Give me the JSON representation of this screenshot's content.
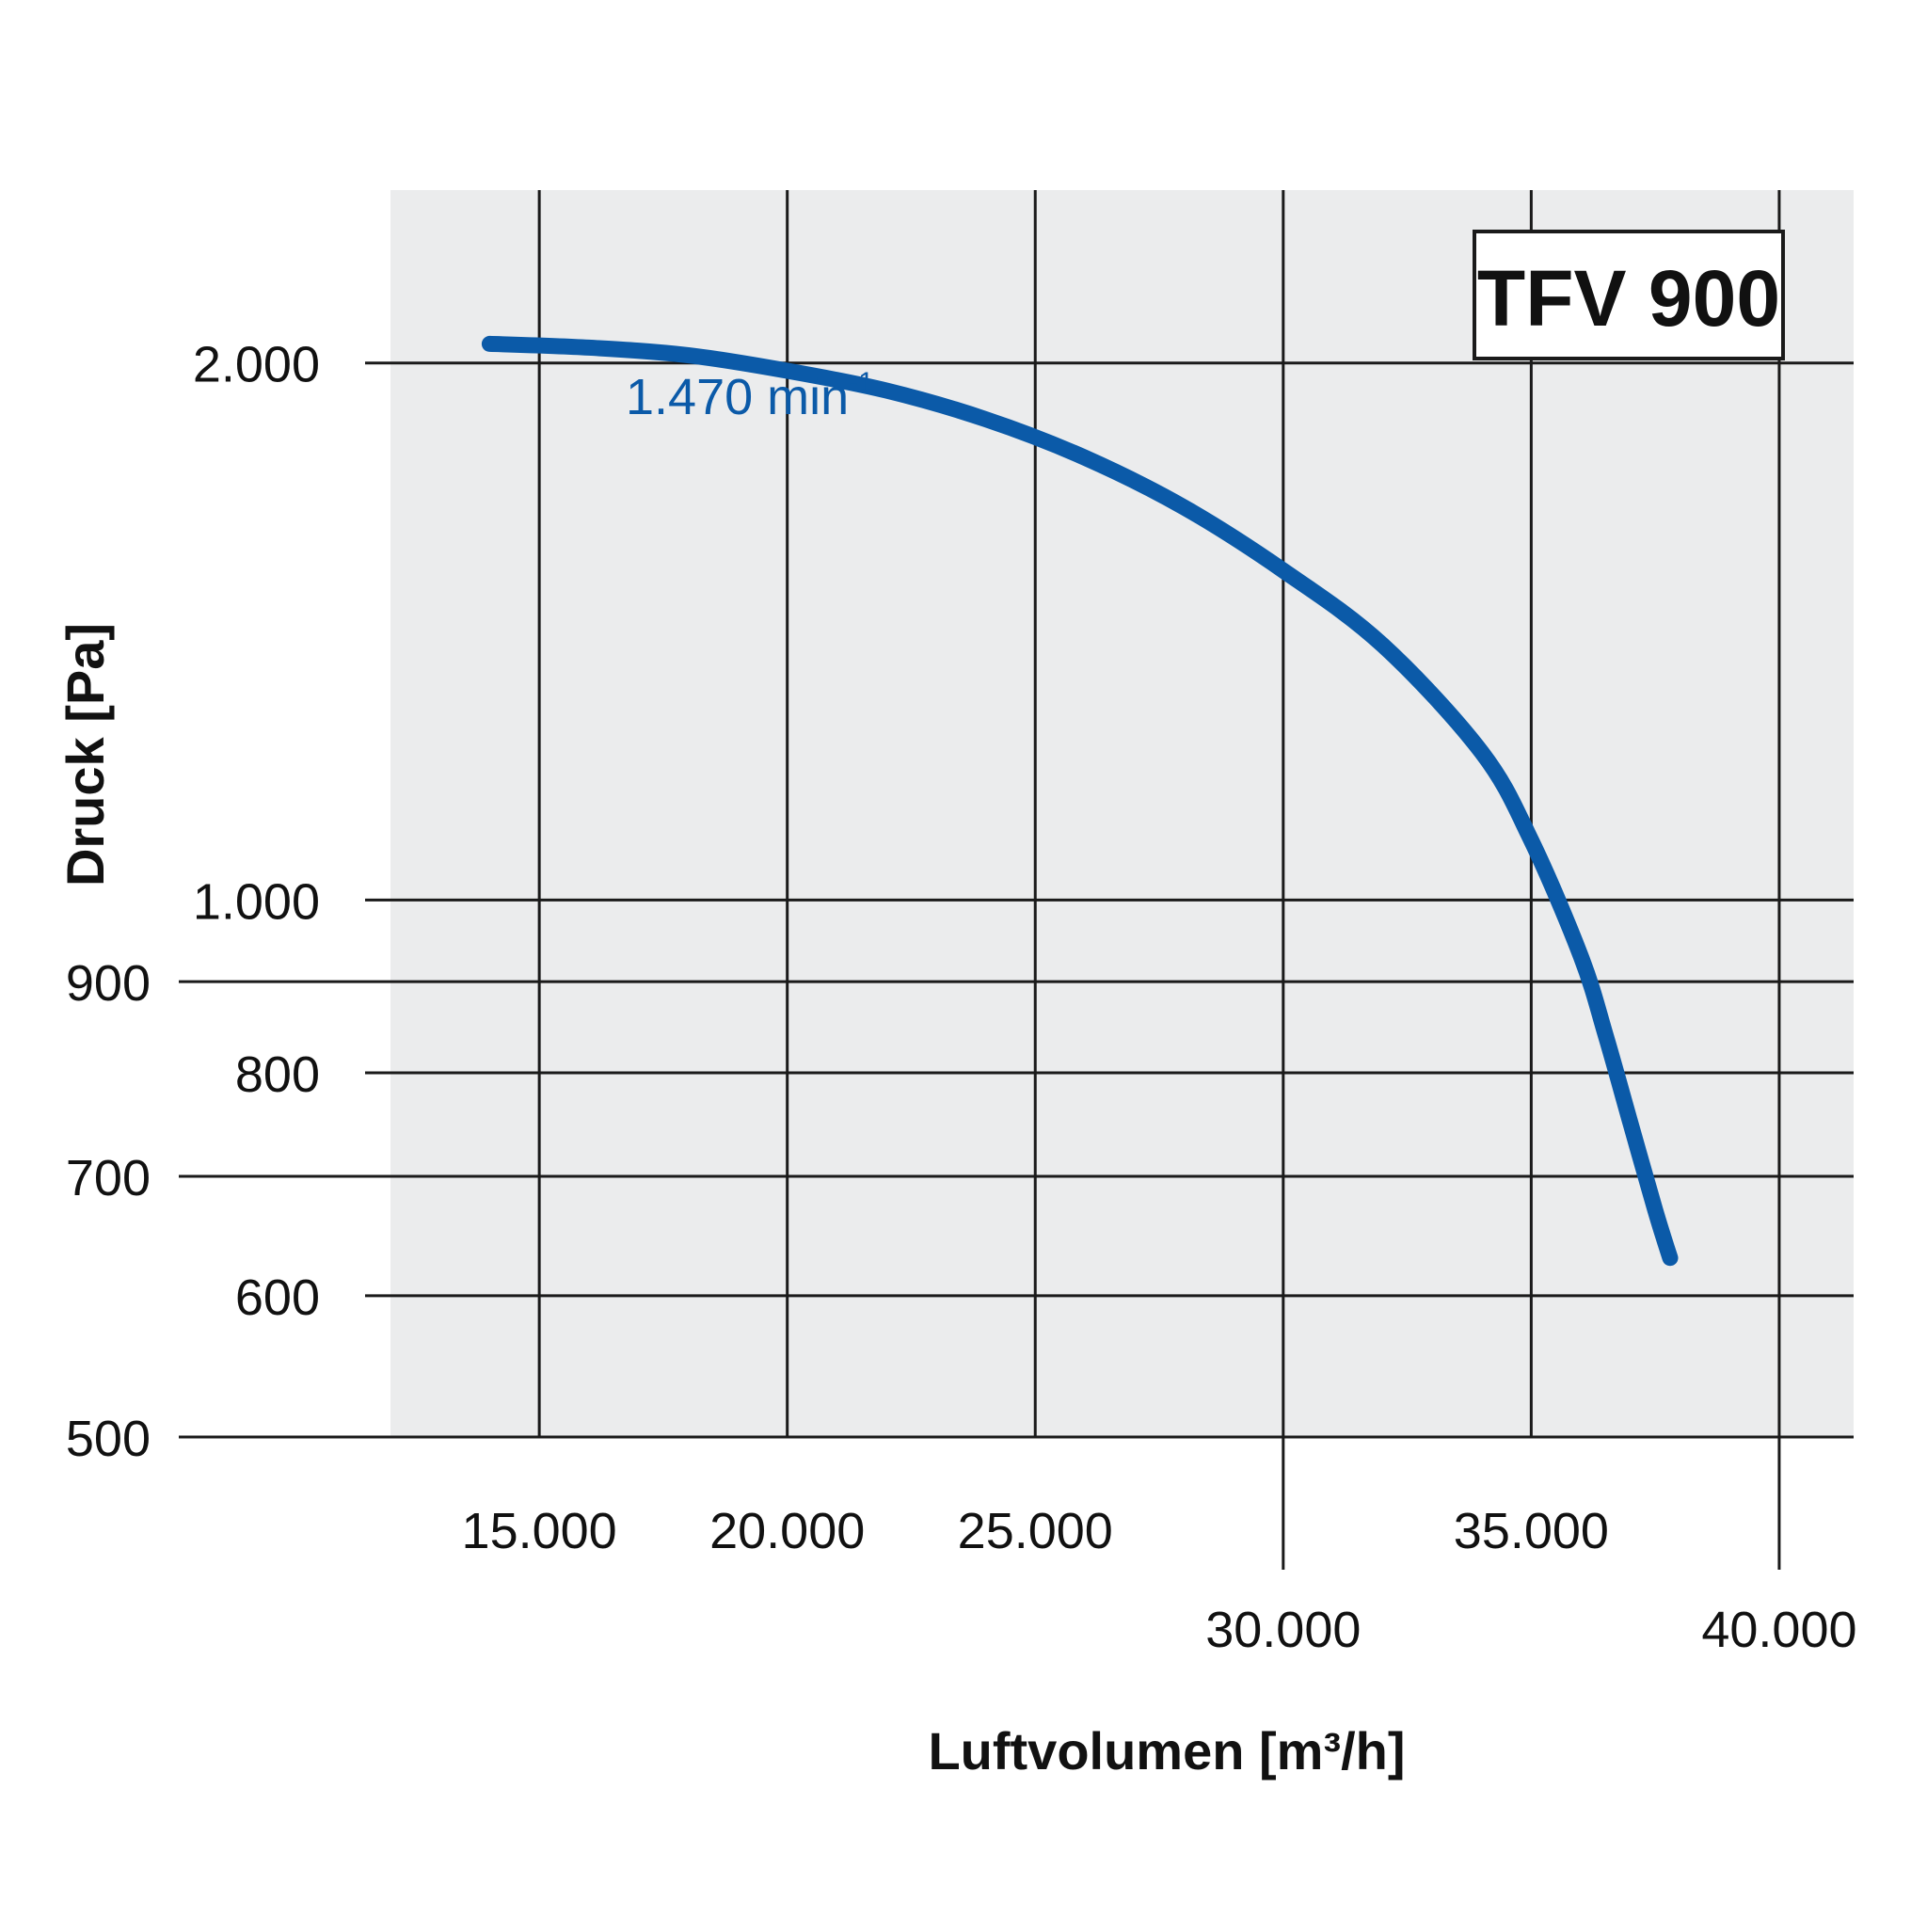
{
  "chart_data": {
    "type": "line",
    "title": "",
    "xlabel": "Luftvolumen [m³/h]",
    "ylabel": "Druck [Pa]",
    "badge": "TFV 900",
    "xlim": [
      12000,
      41500
    ],
    "ylim": [
      500,
      2500
    ],
    "x_ticks": [
      {
        "value": 15000,
        "label": "15.000",
        "row": "upper"
      },
      {
        "value": 20000,
        "label": "20.000",
        "row": "upper"
      },
      {
        "value": 25000,
        "label": "25.000",
        "row": "upper"
      },
      {
        "value": 30000,
        "label": "30.000",
        "row": "lower"
      },
      {
        "value": 35000,
        "label": "35.000",
        "row": "upper"
      },
      {
        "value": 40000,
        "label": "40.000",
        "row": "lower"
      }
    ],
    "y_ticks": [
      {
        "value": 500,
        "label": "500",
        "extended": true
      },
      {
        "value": 600,
        "label": "600",
        "extended": false
      },
      {
        "value": 700,
        "label": "700",
        "extended": true
      },
      {
        "value": 800,
        "label": "800",
        "extended": false
      },
      {
        "value": 900,
        "label": "900",
        "extended": true
      },
      {
        "value": 1000,
        "label": "1.000",
        "extended": false
      },
      {
        "value": 2000,
        "label": "2.000",
        "extended": false
      }
    ],
    "grid": true,
    "series": [
      {
        "name": "1.470 min",
        "name_superscript": "-1",
        "color": "#0b5aa8",
        "x": [
          14000,
          16000,
          18000,
          20000,
          22000,
          24000,
          26000,
          28000,
          30000,
          32000,
          34000,
          35000,
          36000,
          36500,
          37000,
          37500,
          37800
        ],
        "y": [
          2050,
          2040,
          2020,
          1980,
          1930,
          1860,
          1770,
          1660,
          1530,
          1390,
          1210,
          1080,
          930,
          840,
          750,
          670,
          630
        ]
      }
    ]
  },
  "colors": {
    "plot_background": "#ebeced",
    "grid": "#1a1a1a",
    "series": "#0b5aa8",
    "text": "#111111"
  }
}
